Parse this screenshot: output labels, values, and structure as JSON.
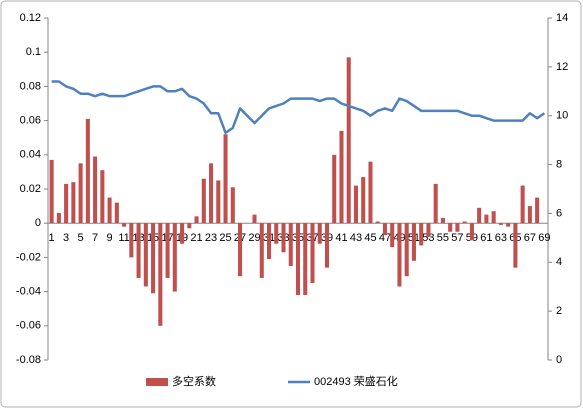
{
  "chart_data": {
    "type": "bar-line",
    "categories": [
      "1",
      null,
      "3",
      null,
      "5",
      null,
      "7",
      null,
      "9",
      null,
      "11",
      null,
      "13",
      null,
      "15",
      null,
      "17",
      null,
      "19",
      null,
      "21",
      null,
      "23",
      null,
      "25",
      null,
      "27",
      null,
      "29",
      null,
      "31",
      null,
      "33",
      null,
      "35",
      null,
      "37",
      null,
      "39",
      null,
      "41",
      null,
      "43",
      null,
      "45",
      null,
      "47",
      null,
      "49",
      null,
      "51",
      null,
      "53",
      null,
      "55",
      null,
      "57",
      null,
      "59",
      null,
      "61",
      null,
      "63",
      null,
      "65",
      null,
      "67",
      null,
      "69"
    ],
    "series": [
      {
        "name": "多空系数",
        "color": "#c0504d",
        "type": "bar",
        "values": [
          0.037,
          0.006,
          0.023,
          0.024,
          0.035,
          0.061,
          0.039,
          0.031,
          0.015,
          0.012,
          -0.002,
          -0.02,
          -0.032,
          -0.037,
          -0.041,
          -0.06,
          -0.032,
          -0.04,
          -0.012,
          -0.003,
          0.004,
          0.026,
          0.035,
          0.025,
          0.052,
          0.021,
          -0.031,
          0,
          0.005,
          -0.032,
          -0.021,
          -0.012,
          -0.017,
          -0.025,
          -0.042,
          -0.042,
          -0.035,
          -0.012,
          -0.026,
          0.04,
          0.054,
          0.097,
          0.022,
          0.027,
          0.036,
          0.001,
          -0.007,
          -0.014,
          -0.037,
          -0.031,
          -0.022,
          -0.013,
          -0.008,
          0.023,
          0.003,
          -0.005,
          -0.005,
          0.001,
          -0.01,
          0.009,
          0.005,
          0.007,
          -0.001,
          -0.002,
          -0.026,
          0.022,
          0.01,
          0.015,
          0
        ]
      },
      {
        "name": "002493 荣盛石化",
        "color": "#4f81bd",
        "type": "line",
        "axis": "y2",
        "values": [
          11.4,
          11.4,
          11.2,
          11.1,
          10.9,
          10.9,
          10.8,
          10.9,
          10.8,
          10.8,
          10.8,
          10.9,
          11.0,
          11.1,
          11.2,
          11.2,
          11.0,
          11.0,
          11.1,
          10.8,
          10.7,
          10.5,
          10.1,
          10.1,
          9.3,
          9.5,
          10.3,
          10.0,
          9.7,
          10.0,
          10.3,
          10.4,
          10.5,
          10.7,
          10.7,
          10.7,
          10.7,
          10.6,
          10.7,
          10.7,
          10.5,
          10.4,
          10.3,
          10.2,
          10.0,
          10.2,
          10.3,
          10.2,
          10.7,
          10.6,
          10.4,
          10.2,
          10.2,
          10.2,
          10.2,
          10.2,
          10.2,
          10.1,
          10.0,
          10.0,
          9.9,
          9.8,
          9.8,
          9.8,
          9.8,
          9.8,
          10.1,
          9.9,
          10.1
        ]
      }
    ],
    "ylim": [
      -0.08,
      0.12
    ],
    "yticks": [
      -0.08,
      -0.06,
      -0.04,
      -0.02,
      0,
      0.02,
      0.04,
      0.06,
      0.08,
      0.1,
      0.12
    ],
    "y2lim": [
      0,
      14
    ],
    "y2ticks": [
      0,
      2,
      4,
      6,
      8,
      10,
      12,
      14
    ],
    "legend": "bottom",
    "grid": false
  }
}
